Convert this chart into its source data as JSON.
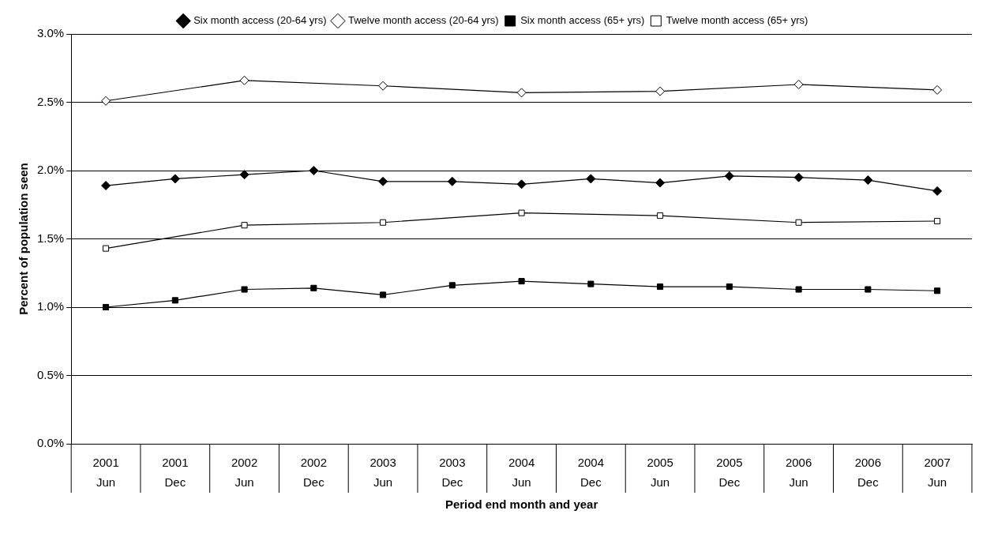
{
  "chart_data": {
    "type": "line",
    "xlabel": "Period end month and year",
    "ylabel": "Percent of population seen",
    "categories": [
      "2001\nJun",
      "2001\nDec",
      "2002\nJun",
      "2002\nDec",
      "2003\nJun",
      "2003\nDec",
      "2004\nJun",
      "2004\nDec",
      "2005\nJun",
      "2005\nDec",
      "2006\nJun",
      "2006\nDec",
      "2007\nJun"
    ],
    "series": [
      {
        "name": "Six month access (20-64 yrs)",
        "color": "#000000",
        "marker": "diamond",
        "values": [
          1.89,
          1.94,
          1.97,
          2.0,
          1.92,
          1.92,
          1.9,
          1.94,
          1.91,
          1.96,
          1.95,
          1.93,
          1.85
        ]
      },
      {
        "name": "Twelve month access (20-64 yrs)",
        "color": "#000000",
        "marker": "diamond",
        "values": [
          2.51,
          null,
          2.66,
          null,
          2.62,
          null,
          2.57,
          null,
          2.58,
          null,
          2.63,
          null,
          2.59
        ]
      },
      {
        "name": "Six month access (65+ yrs)",
        "color": "#000000",
        "marker": "square",
        "values": [
          1.0,
          1.05,
          1.13,
          1.14,
          1.09,
          1.16,
          1.19,
          1.17,
          1.15,
          1.15,
          1.13,
          1.13,
          1.12
        ]
      },
      {
        "name": "Twelve month access (65+ yrs)",
        "color": "#000000",
        "marker": "square",
        "values": [
          1.43,
          null,
          1.6,
          null,
          1.62,
          null,
          1.69,
          null,
          1.67,
          null,
          1.62,
          null,
          1.63
        ]
      }
    ],
    "ylim": [
      0,
      3
    ],
    "yticks": [
      {
        "value": 0,
        "label": "0.0%"
      },
      {
        "value": 0.5,
        "label": "0.5%"
      },
      {
        "value": 1,
        "label": "1.0%"
      },
      {
        "value": 1.5,
        "label": "1.5%"
      },
      {
        "value": 2,
        "label": "2.0%"
      },
      {
        "value": 2.5,
        "label": "2.5%"
      },
      {
        "value": 3,
        "label": "3.0%"
      }
    ],
    "grid": "y",
    "legend": "top",
    "line_style": "solid"
  }
}
